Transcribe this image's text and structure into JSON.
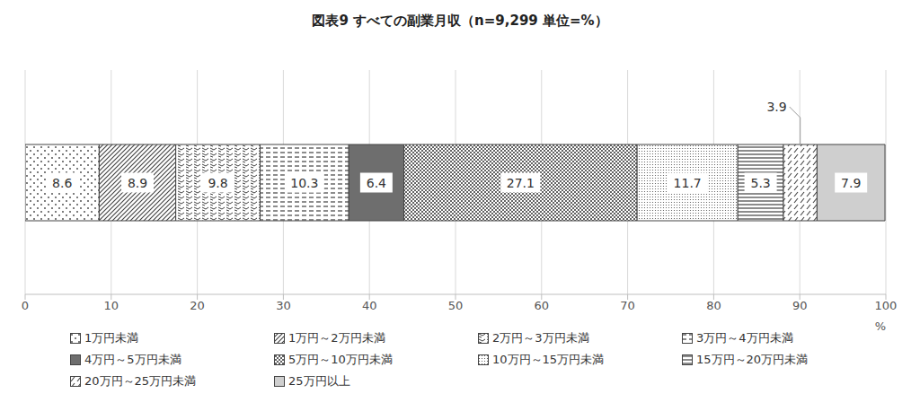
{
  "chart_data": {
    "type": "bar",
    "orientation": "horizontal",
    "stacked": true,
    "title": "図表9 すべての副業月収（n=9,299 単位=%）",
    "xlabel": "%",
    "categories": [
      null
    ],
    "series": [
      {
        "name": "1万円未満",
        "color": "#404040",
        "values": [
          8.6
        ]
      },
      {
        "name": "1万円～2万円未満",
        "color": "#404040",
        "values": [
          8.9
        ]
      },
      {
        "name": "2万円～3万円未満",
        "color": "#404040",
        "values": [
          9.8
        ]
      },
      {
        "name": "3万円～4万円未満",
        "color": "#404040",
        "values": [
          10.3
        ]
      },
      {
        "name": "4万円～5万円未満",
        "color": "#6e6e6e",
        "values": [
          6.4
        ]
      },
      {
        "name": "5万円～10万円未満",
        "color": "#505050",
        "values": [
          27.1
        ]
      },
      {
        "name": "10万円～15万円未満",
        "color": "#505050",
        "values": [
          11.7
        ]
      },
      {
        "name": "15万円～20万円未満",
        "color": "#404040",
        "values": [
          5.3
        ]
      },
      {
        "name": "20万円～25万円未満",
        "color": "#404040",
        "values": [
          3.9
        ]
      },
      {
        "name": "25万円以上",
        "color": "#7a7a7a",
        "values": [
          7.9
        ]
      }
    ],
    "xlim": [
      0,
      100
    ],
    "xticks": [
      0,
      10,
      20,
      30,
      40,
      50,
      60,
      70,
      80,
      90,
      100
    ],
    "grid": true,
    "data_labels": true,
    "legend": "bottom",
    "tick_labels": "x"
  }
}
